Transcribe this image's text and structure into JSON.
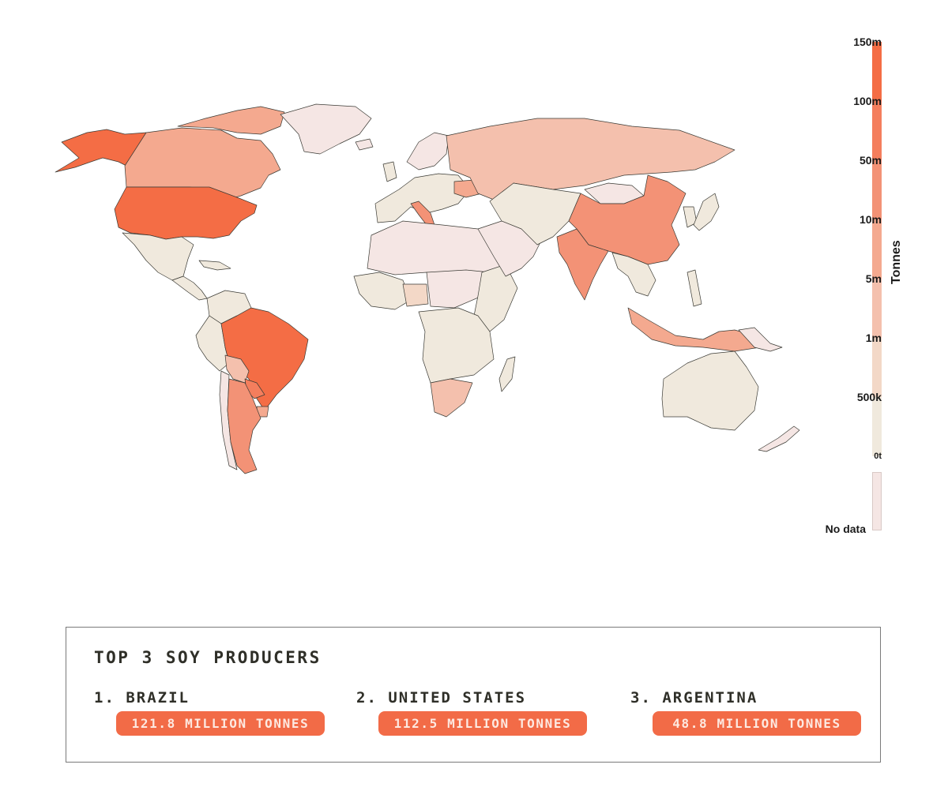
{
  "map": {
    "colors": {
      "0": "#f0e9dd",
      "1": "#f3d8c7",
      "2": "#f4c0ad",
      "3": "#f4a98f",
      "4": "#f39276",
      "5": "#f47e5d",
      "6": "#f46d45",
      "nodata": "#f5e6e4"
    },
    "regions": [
      {
        "id": "usa",
        "tier": 6
      },
      {
        "id": "alaska",
        "tier": 6
      },
      {
        "id": "canada",
        "tier": 3
      },
      {
        "id": "canada-arctic",
        "tier": 3
      },
      {
        "id": "greenland",
        "tier": "nodata"
      },
      {
        "id": "mexico",
        "tier": 0
      },
      {
        "id": "central-america",
        "tier": 0
      },
      {
        "id": "caribbean",
        "tier": 0
      },
      {
        "id": "colombia-venezuela",
        "tier": 0
      },
      {
        "id": "peru-ecuador",
        "tier": 0
      },
      {
        "id": "brazil",
        "tier": 6
      },
      {
        "id": "bolivia",
        "tier": 2
      },
      {
        "id": "paraguay",
        "tier": 5
      },
      {
        "id": "uruguay",
        "tier": 3
      },
      {
        "id": "chile",
        "tier": "nodata"
      },
      {
        "id": "argentina",
        "tier": 4
      },
      {
        "id": "iceland",
        "tier": "nodata"
      },
      {
        "id": "scandinavia",
        "tier": "nodata"
      },
      {
        "id": "britain",
        "tier": 0
      },
      {
        "id": "western-europe",
        "tier": 0
      },
      {
        "id": "italy",
        "tier": 4
      },
      {
        "id": "ukraine",
        "tier": 3
      },
      {
        "id": "russia",
        "tier": 2
      },
      {
        "id": "north-africa",
        "tier": "nodata"
      },
      {
        "id": "west-africa",
        "tier": 0
      },
      {
        "id": "nigeria",
        "tier": 1
      },
      {
        "id": "central-africa",
        "tier": "nodata"
      },
      {
        "id": "east-africa",
        "tier": 0
      },
      {
        "id": "southern-africa",
        "tier": 0
      },
      {
        "id": "south-africa",
        "tier": 2
      },
      {
        "id": "madagascar",
        "tier": 0
      },
      {
        "id": "middle-east",
        "tier": "nodata"
      },
      {
        "id": "central-asia",
        "tier": 0
      },
      {
        "id": "mongolia",
        "tier": "nodata"
      },
      {
        "id": "china",
        "tier": 4
      },
      {
        "id": "korea",
        "tier": 0
      },
      {
        "id": "japan",
        "tier": 0
      },
      {
        "id": "india",
        "tier": 4
      },
      {
        "id": "southeast-asia",
        "tier": 0
      },
      {
        "id": "indonesia",
        "tier": 3
      },
      {
        "id": "philippines",
        "tier": 0
      },
      {
        "id": "papua",
        "tier": "nodata"
      },
      {
        "id": "australia",
        "tier": 0
      },
      {
        "id": "new-zealand",
        "tier": "nodata"
      }
    ]
  },
  "legend": {
    "title": "Tonnes",
    "ticks": [
      "150m",
      "100m",
      "50m",
      "10m",
      "5m",
      "1m",
      "500k",
      "0t"
    ],
    "no_data": "No data"
  },
  "producers": {
    "title": "TOP 3 SOY PRODUCERS",
    "items": [
      {
        "rank": "1. BRAZIL",
        "amount": "121.8 MILLION TONNES"
      },
      {
        "rank": "2. UNITED STATES",
        "amount": "112.5 MILLION TONNES"
      },
      {
        "rank": "3. ARGENTINA",
        "amount": "48.8 MILLION TONNES"
      }
    ]
  }
}
